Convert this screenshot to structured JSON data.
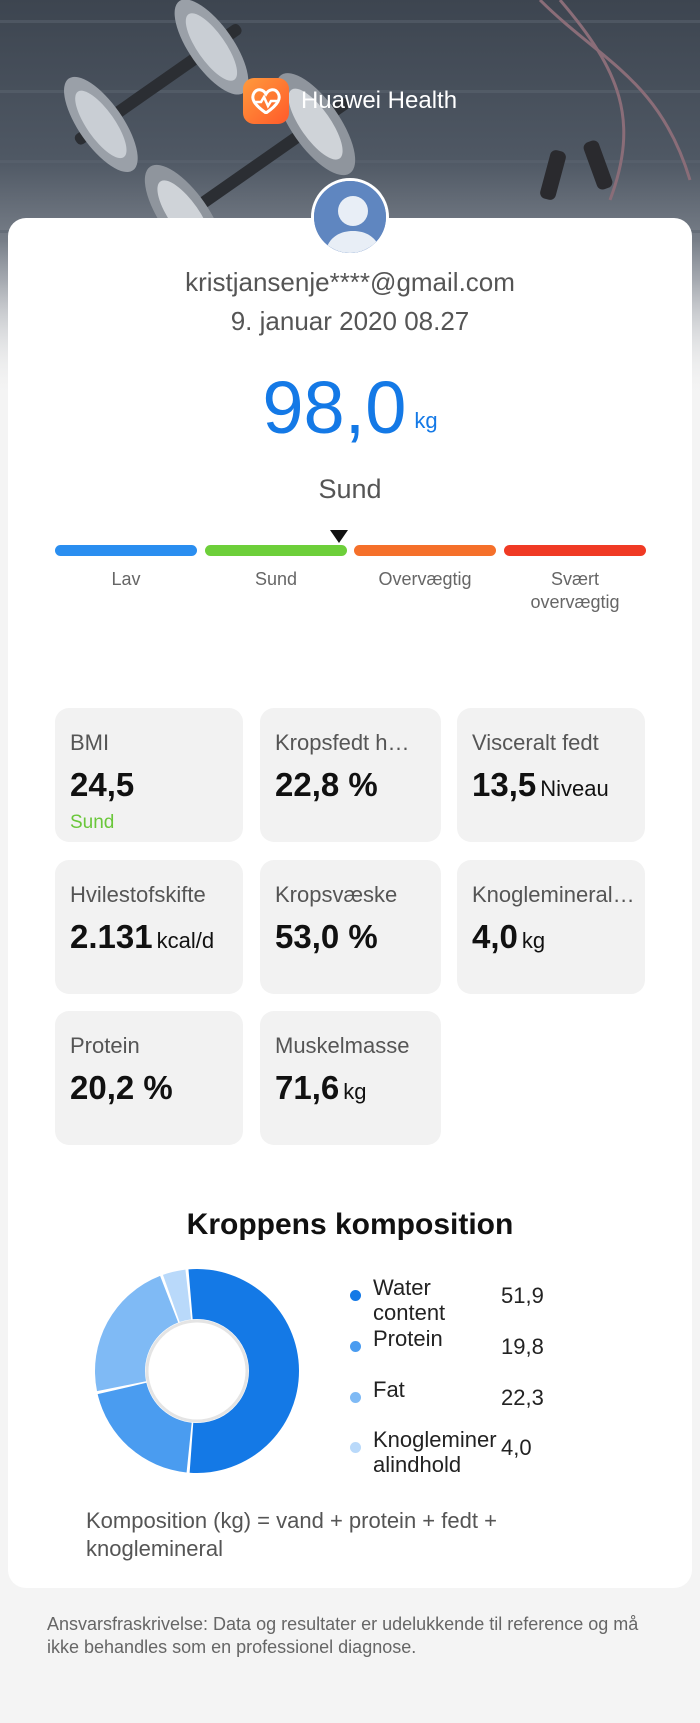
{
  "app": {
    "title": "Huawei Health"
  },
  "user": {
    "email": "kristjansenje****@gmail.com",
    "date": "9. januar 2020 08.27"
  },
  "weight": {
    "value": "98,0",
    "unit": "kg",
    "status": "Sund"
  },
  "scale": {
    "segments": [
      {
        "label": "Lav",
        "color": "#2a8ef0"
      },
      {
        "label": "Sund",
        "color": "#6dcf3a"
      },
      {
        "label": "Overvægtig",
        "color": "#f5702a"
      },
      {
        "label": "Svært overvægtig",
        "color": "#f03a24"
      }
    ],
    "current_segment": "Sund"
  },
  "metrics": [
    {
      "label": "BMI",
      "value": "24,5",
      "unit": "",
      "sub": "Sund"
    },
    {
      "label": "Kropsfedt h…",
      "value": "22,8 %",
      "unit": ""
    },
    {
      "label": "Visceralt fedt",
      "value": "13,5",
      "unit": "Niveau"
    },
    {
      "label": "Hvilestofskifte",
      "value": "2.131",
      "unit": "kcal/d"
    },
    {
      "label": "Kropsvæske",
      "value": "53,0 %",
      "unit": ""
    },
    {
      "label": "Knoglemineral…",
      "value": "4,0",
      "unit": "kg"
    },
    {
      "label": "Protein",
      "value": "20,2 %",
      "unit": ""
    },
    {
      "label": "Muskelmasse",
      "value": "71,6",
      "unit": "kg"
    }
  ],
  "composition": {
    "title": "Kroppens komposition",
    "items": [
      {
        "name": "Water content",
        "value": "51,9",
        "color": "#1479e6"
      },
      {
        "name": "Protein",
        "value": "19,8",
        "color": "#4a9cf0"
      },
      {
        "name": "Fat",
        "value": "22,3",
        "color": "#7fbaf5"
      },
      {
        "name": "Knoglemineralindhold",
        "value": "4,0",
        "color": "#b9d9fa"
      }
    ],
    "formula": "Komposition (kg)  = vand + protein + fedt + knoglemineral"
  },
  "disclaimer": "Ansvarsfraskrivelse: Data og resultater er udelukkende til reference og må ikke behandles som en professionel diagnose.",
  "icons": {
    "logo": "heart-logo-icon",
    "avatar": "user-avatar-icon"
  }
}
